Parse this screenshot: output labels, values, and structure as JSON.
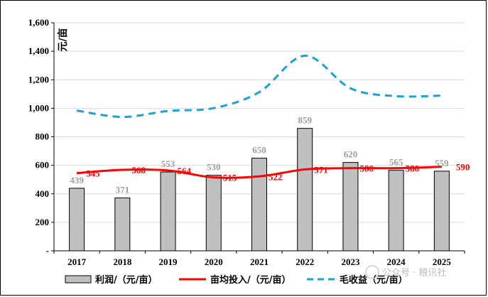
{
  "chart_data": {
    "type": "bar",
    "title": "",
    "ylabel": "元/亩",
    "xlabel": "",
    "ylim": [
      0,
      1600
    ],
    "yticks": [
      0,
      200,
      400,
      600,
      800,
      1000,
      1200,
      1400,
      1600
    ],
    "ytick_labels": [
      "-",
      "200",
      "400",
      "600",
      "800",
      "1,000",
      "1,200",
      "1,400",
      "1,600"
    ],
    "categories": [
      "2017",
      "2018",
      "2019",
      "2020",
      "2021",
      "2022",
      "2023",
      "2024",
      "2025"
    ],
    "series": [
      {
        "name": "利润/（元/亩）",
        "kind": "bar",
        "color": "#bfbfbf",
        "values": [
          439,
          371,
          553,
          530,
          650,
          859,
          620,
          565,
          559
        ]
      },
      {
        "name": "亩均投入/（元/亩）",
        "kind": "line",
        "color": "#ff0000",
        "values": [
          545,
          568,
          564,
          515,
          522,
          571,
          580,
          580,
          590
        ]
      },
      {
        "name": "毛收益（元/亩）",
        "kind": "line-dashed",
        "color": "#1ba1d6",
        "values": [
          984,
          939,
          981,
          1001,
          1113,
          1369,
          1140,
          1085,
          1089
        ]
      }
    ],
    "legend_position": "bottom"
  },
  "watermark": "公众号 · 粮讯社"
}
